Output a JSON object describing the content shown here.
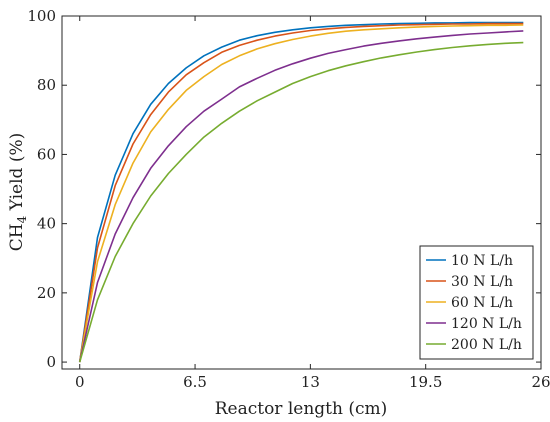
{
  "chart_data": {
    "type": "line",
    "xlabel": "Reactor length (cm)",
    "ylabel": "CH",
    "ylabel_subscript": "4",
    "ylabel_suffix": " Yield (%)",
    "xlim": [
      -1,
      26
    ],
    "ylim": [
      -2,
      100
    ],
    "xticks": [
      0,
      6.5,
      13,
      19.5,
      26
    ],
    "xtick_labels": [
      "0",
      "6.5",
      "13",
      "19.5",
      "26"
    ],
    "yticks": [
      0,
      20,
      40,
      60,
      80,
      100
    ],
    "ytick_labels": [
      "0",
      "20",
      "40",
      "60",
      "80",
      "100"
    ],
    "grid": false,
    "legend_position": "bottom-right",
    "x": [
      0,
      1,
      2,
      3,
      4,
      5,
      6,
      7,
      8,
      9,
      10,
      11,
      12,
      13,
      14,
      15,
      16,
      17,
      18,
      19,
      20,
      21,
      22,
      23,
      24,
      25
    ],
    "series": [
      {
        "name": "10 N L/h",
        "color": "#0072BD",
        "values": [
          0,
          36,
          54,
          66,
          74.5,
          80.5,
          85,
          88.5,
          91,
          93,
          94.3,
          95.3,
          96,
          96.6,
          97,
          97.3,
          97.5,
          97.7,
          97.8,
          97.9,
          98,
          98,
          98.1,
          98.1,
          98.1,
          98.1
        ]
      },
      {
        "name": "30 N L/h",
        "color": "#D95319",
        "values": [
          0,
          33,
          51,
          63,
          71.5,
          78,
          83,
          86.5,
          89.5,
          91.5,
          93,
          94.2,
          95.1,
          95.8,
          96.3,
          96.7,
          97,
          97.2,
          97.4,
          97.5,
          97.6,
          97.7,
          97.7,
          97.8,
          97.8,
          97.8
        ]
      },
      {
        "name": "60 N L/h",
        "color": "#EDB120",
        "values": [
          0,
          29,
          45.5,
          57.5,
          66.5,
          73,
          78.5,
          82.5,
          86,
          88.5,
          90.5,
          92,
          93.2,
          94.2,
          95,
          95.6,
          96,
          96.3,
          96.6,
          96.8,
          97,
          97.1,
          97.2,
          97.3,
          97.3,
          97.4
        ]
      },
      {
        "name": "120 N L/h",
        "color": "#7E2F8E",
        "values": [
          0,
          23,
          37,
          47.5,
          56,
          62.5,
          68,
          72.5,
          76,
          79.5,
          82,
          84.3,
          86.2,
          87.8,
          89.2,
          90.3,
          91.3,
          92.1,
          92.8,
          93.4,
          93.9,
          94.4,
          94.8,
          95.1,
          95.4,
          95.7
        ]
      },
      {
        "name": "200 N L/h",
        "color": "#77AC30",
        "values": [
          0,
          18,
          30.5,
          40,
          48,
          54.5,
          60,
          65,
          69,
          72.5,
          75.5,
          78,
          80.5,
          82.5,
          84.2,
          85.6,
          86.8,
          87.9,
          88.8,
          89.6,
          90.3,
          90.9,
          91.4,
          91.8,
          92.1,
          92.3
        ]
      }
    ]
  }
}
